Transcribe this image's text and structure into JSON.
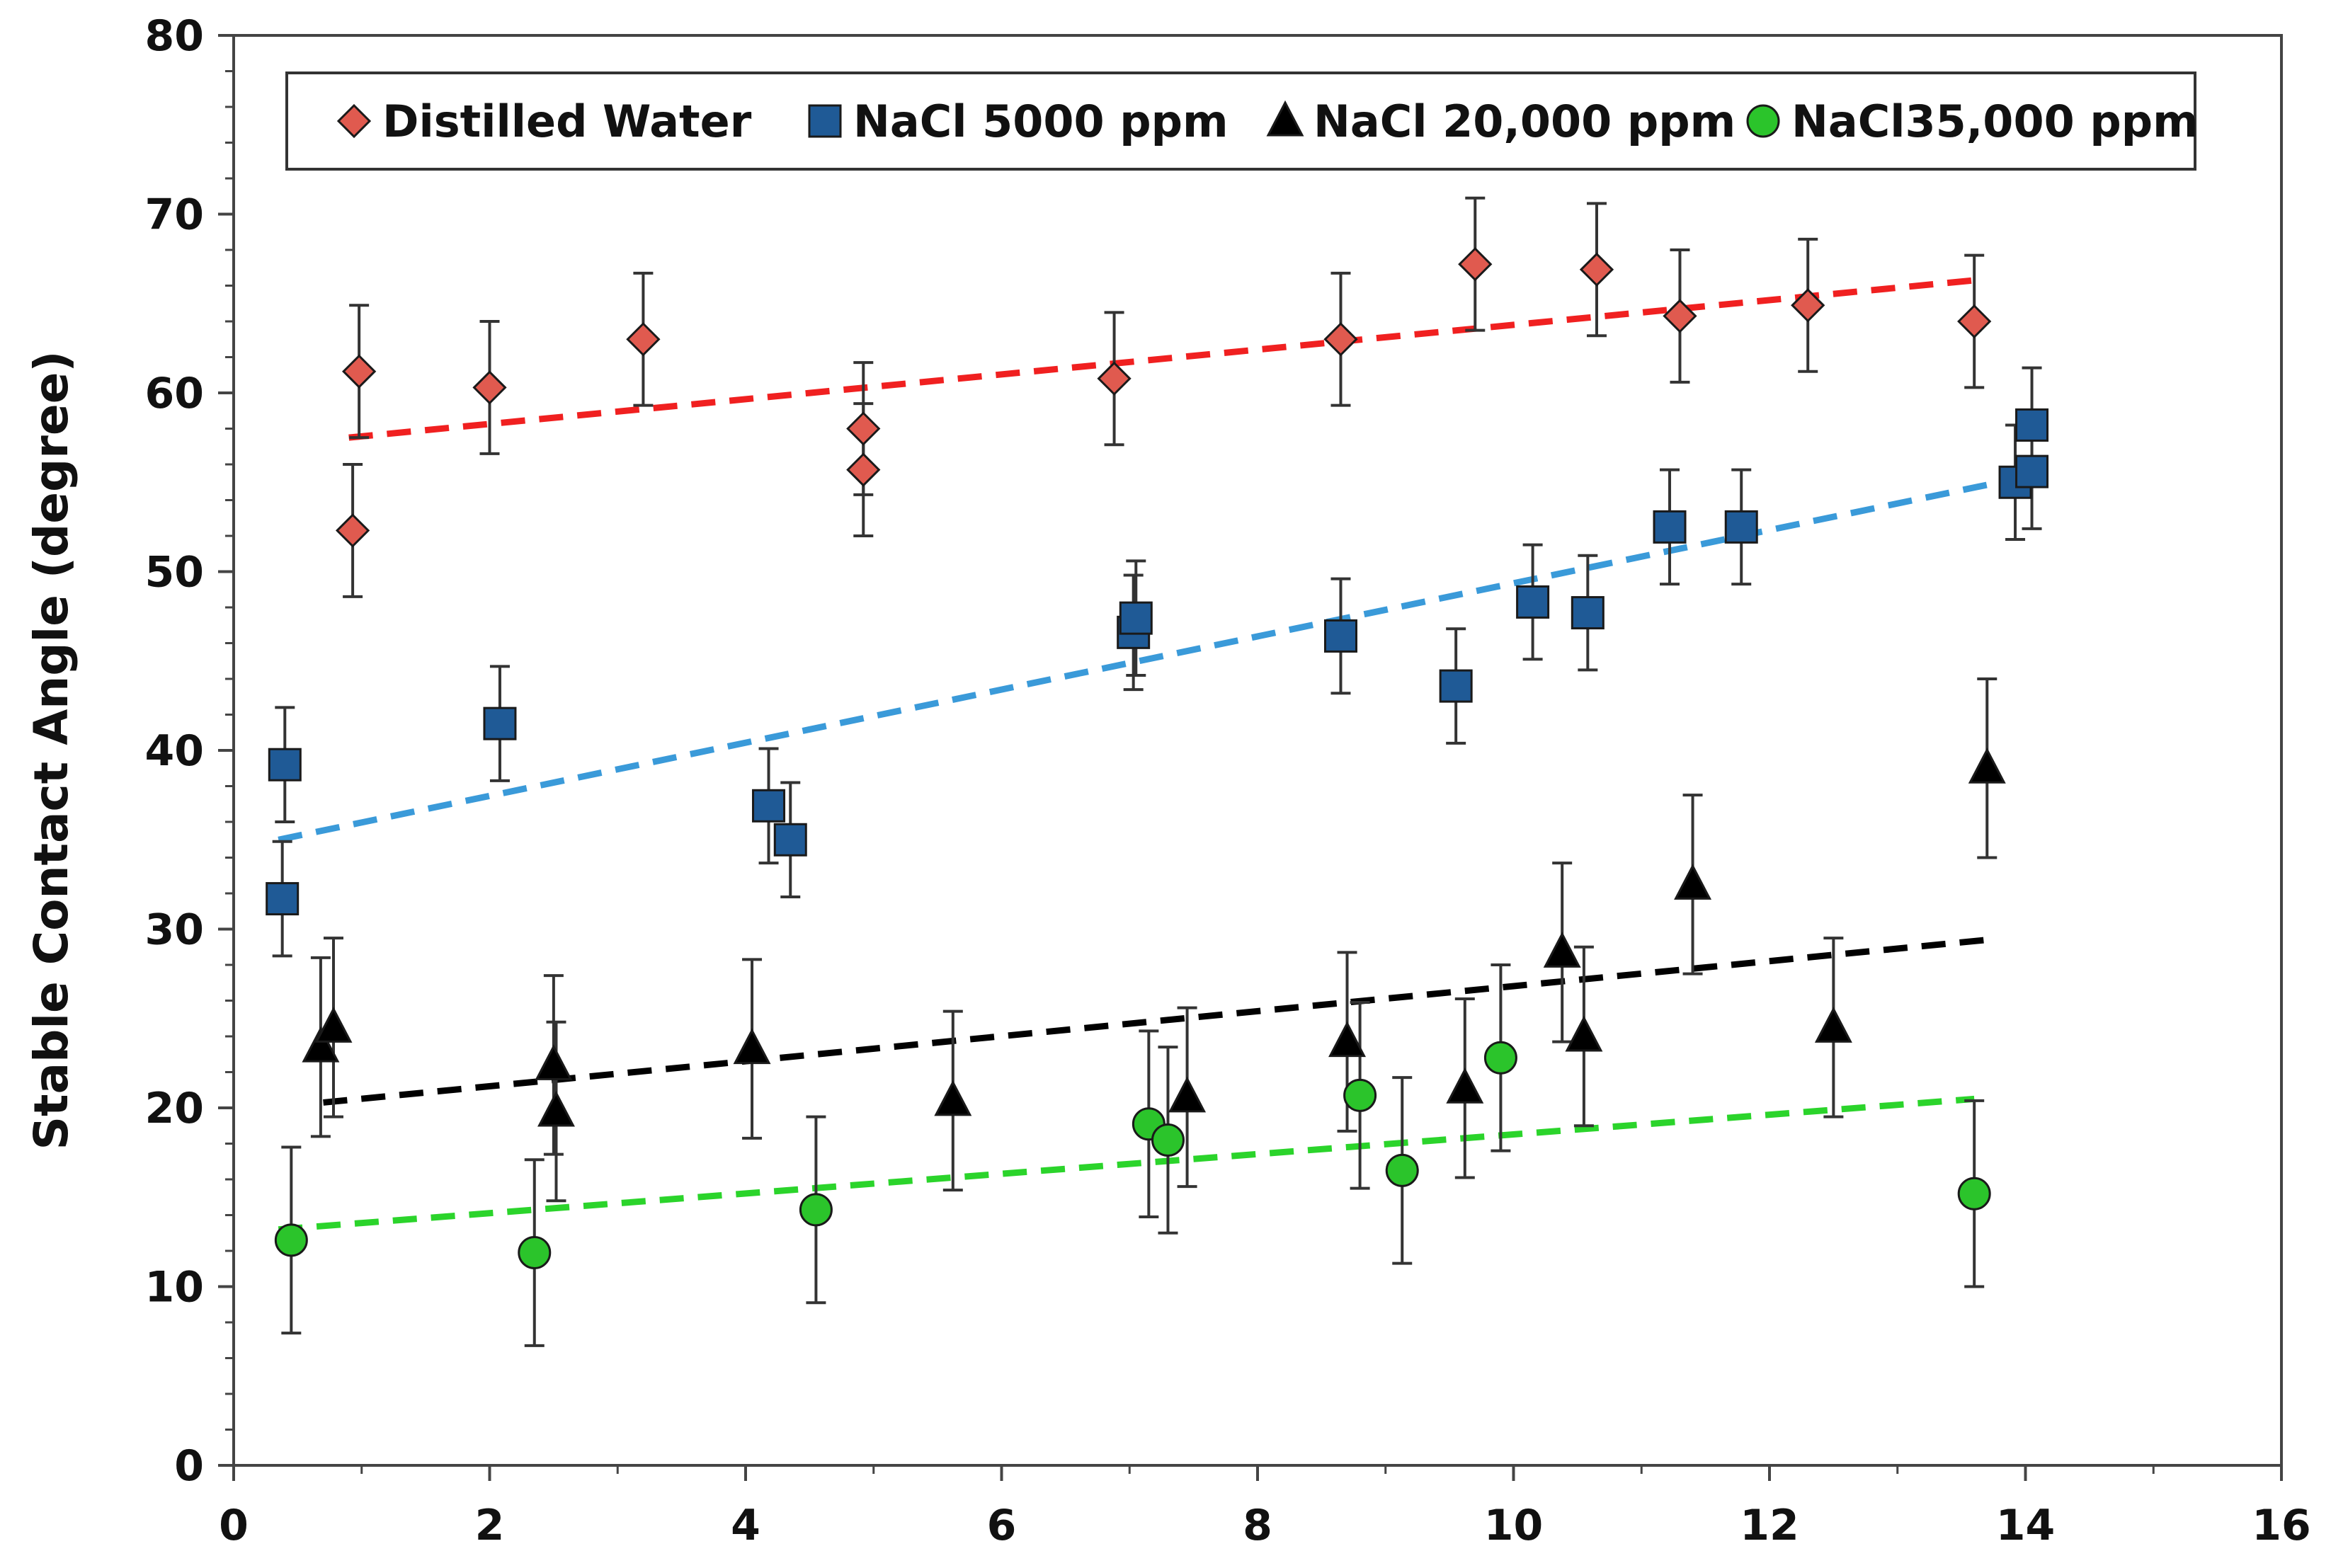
{
  "chart_data": {
    "type": "scatter",
    "title": "",
    "xlabel": "",
    "ylabel": "Stable Contact Angle (degree)",
    "xlim": [
      0,
      16
    ],
    "ylim": [
      0,
      80
    ],
    "x_ticks": [
      "0",
      "2",
      "4",
      "6",
      "8",
      "10",
      "12",
      "14",
      "16"
    ],
    "y_ticks": [
      "0",
      "10",
      "20",
      "30",
      "40",
      "50",
      "60",
      "70",
      "80"
    ],
    "grid": false,
    "legend_position": "top",
    "legend": [
      {
        "label": "Distilled Water",
        "marker": "diamond",
        "color": "#E05A4F"
      },
      {
        "label": "NaCl 5000 ppm",
        "marker": "square",
        "color": "#1F5A96"
      },
      {
        "label": "NaCl 20,000 ppm",
        "marker": "triangle",
        "color": "#000000"
      },
      {
        "label": "NaCl35,000 ppm",
        "marker": "circle",
        "color": "#2BC42B"
      }
    ],
    "series": [
      {
        "name": "Distilled Water",
        "marker": "diamond",
        "color": "#E05A4F",
        "trend_color": "#F02020",
        "trend": {
          "x": [
            0.9,
            13.6
          ],
          "y": [
            57.5,
            66.3
          ]
        },
        "points": [
          {
            "x": 0.93,
            "y": 52.3,
            "err": 3.7
          },
          {
            "x": 0.98,
            "y": 61.2,
            "err": 3.7
          },
          {
            "x": 2.0,
            "y": 60.3,
            "err": 3.7
          },
          {
            "x": 3.2,
            "y": 63.0,
            "err": 3.7
          },
          {
            "x": 4.92,
            "y": 55.7,
            "err": 3.7
          },
          {
            "x": 4.92,
            "y": 58.0,
            "err": 3.7
          },
          {
            "x": 6.88,
            "y": 60.8,
            "err": 3.7
          },
          {
            "x": 8.65,
            "y": 63.0,
            "err": 3.7
          },
          {
            "x": 9.7,
            "y": 67.2,
            "err": 3.7
          },
          {
            "x": 10.65,
            "y": 66.9,
            "err": 3.7
          },
          {
            "x": 11.3,
            "y": 64.3,
            "err": 3.7
          },
          {
            "x": 12.3,
            "y": 64.9,
            "err": 3.7
          },
          {
            "x": 13.6,
            "y": 64.0,
            "err": 3.7
          }
        ]
      },
      {
        "name": "NaCl 5000 ppm",
        "marker": "square",
        "color": "#1F5A96",
        "trend_color": "#3A9AD9",
        "trend": {
          "x": [
            0.35,
            14.0
          ],
          "y": [
            35.0,
            55.3
          ]
        },
        "points": [
          {
            "x": 0.38,
            "y": 31.7,
            "err": 3.2
          },
          {
            "x": 0.4,
            "y": 39.2,
            "err": 3.2
          },
          {
            "x": 2.08,
            "y": 41.5,
            "err": 3.2
          },
          {
            "x": 4.18,
            "y": 36.9,
            "err": 3.2
          },
          {
            "x": 4.35,
            "y": 35.0,
            "err": 3.2
          },
          {
            "x": 7.03,
            "y": 46.6,
            "err": 3.2
          },
          {
            "x": 7.05,
            "y": 47.4,
            "err": 3.2
          },
          {
            "x": 8.65,
            "y": 46.4,
            "err": 3.2
          },
          {
            "x": 9.55,
            "y": 43.6,
            "err": 3.2
          },
          {
            "x": 10.15,
            "y": 48.3,
            "err": 3.2
          },
          {
            "x": 10.58,
            "y": 47.7,
            "err": 3.2
          },
          {
            "x": 11.22,
            "y": 52.5,
            "err": 3.2
          },
          {
            "x": 11.78,
            "y": 52.5,
            "err": 3.2
          },
          {
            "x": 13.92,
            "y": 55.0,
            "err": 3.2
          },
          {
            "x": 14.05,
            "y": 55.6,
            "err": 3.2
          },
          {
            "x": 14.05,
            "y": 58.2,
            "err": 3.2
          }
        ]
      },
      {
        "name": "NaCl 20,000 ppm",
        "marker": "triangle",
        "color": "#000000",
        "trend_color": "#000000",
        "trend": {
          "x": [
            0.7,
            13.7
          ],
          "y": [
            20.3,
            29.4
          ]
        },
        "points": [
          {
            "x": 0.68,
            "y": 23.4,
            "err": 5.0
          },
          {
            "x": 0.78,
            "y": 24.5,
            "err": 5.0
          },
          {
            "x": 2.5,
            "y": 22.4,
            "err": 5.0
          },
          {
            "x": 2.52,
            "y": 19.8,
            "err": 5.0
          },
          {
            "x": 4.05,
            "y": 23.3,
            "err": 5.0
          },
          {
            "x": 5.62,
            "y": 20.4,
            "err": 5.0
          },
          {
            "x": 7.45,
            "y": 20.6,
            "err": 5.0
          },
          {
            "x": 8.7,
            "y": 23.7,
            "err": 5.0
          },
          {
            "x": 9.62,
            "y": 21.1,
            "err": 5.0
          },
          {
            "x": 10.38,
            "y": 28.7,
            "err": 5.0
          },
          {
            "x": 10.55,
            "y": 24.0,
            "err": 5.0
          },
          {
            "x": 11.4,
            "y": 32.5,
            "err": 5.0
          },
          {
            "x": 12.5,
            "y": 24.5,
            "err": 5.0
          },
          {
            "x": 13.7,
            "y": 39.0,
            "err": 5.0
          }
        ]
      },
      {
        "name": "NaCl35,000 ppm",
        "marker": "circle",
        "color": "#2BC42B",
        "trend_color": "#2BD42B",
        "trend": {
          "x": [
            0.35,
            13.6
          ],
          "y": [
            13.2,
            20.5
          ]
        },
        "points": [
          {
            "x": 0.45,
            "y": 12.6,
            "err": 5.2
          },
          {
            "x": 2.35,
            "y": 11.9,
            "err": 5.2
          },
          {
            "x": 4.55,
            "y": 14.3,
            "err": 5.2
          },
          {
            "x": 7.15,
            "y": 19.1,
            "err": 5.2
          },
          {
            "x": 7.3,
            "y": 18.2,
            "err": 5.2
          },
          {
            "x": 8.8,
            "y": 20.7,
            "err": 5.2
          },
          {
            "x": 9.13,
            "y": 16.5,
            "err": 5.2
          },
          {
            "x": 9.9,
            "y": 22.8,
            "err": 5.2
          },
          {
            "x": 13.6,
            "y": 15.2,
            "err": 5.2
          }
        ]
      }
    ]
  }
}
